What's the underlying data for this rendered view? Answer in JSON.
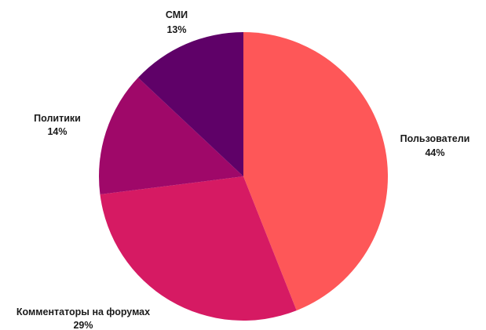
{
  "chart_data": {
    "type": "pie",
    "title": "",
    "start_angle_deg": 0,
    "direction": "clockwise",
    "slices": [
      {
        "label": "Пользователи",
        "value": 44,
        "value_label": "44%",
        "color": "#fe5758"
      },
      {
        "label": "Комментаторы на форумах",
        "value": 29,
        "value_label": "29%",
        "color": "#d61a63"
      },
      {
        "label": "Политики",
        "value": 14,
        "value_label": "14%",
        "color": "#9f0869"
      },
      {
        "label": "СМИ",
        "value": 13,
        "value_label": "13%",
        "color": "#5f0168"
      }
    ]
  }
}
